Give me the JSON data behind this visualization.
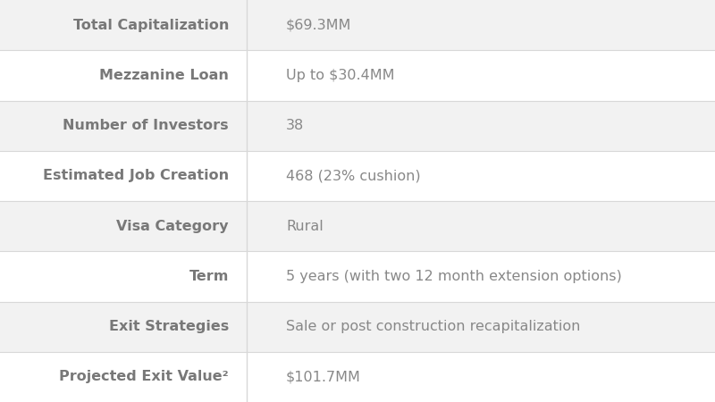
{
  "rows": [
    {
      "label": "Total Capitalization",
      "value": "$69.3MM"
    },
    {
      "label": "Mezzanine Loan",
      "value": "Up to $30.4MM"
    },
    {
      "label": "Number of Investors",
      "value": "38"
    },
    {
      "label": "Estimated Job Creation",
      "value": "468 (23% cushion)"
    },
    {
      "label": "Visa Category",
      "value": "Rural"
    },
    {
      "label": "Term",
      "value": "5 years (with two 12 month extension options)"
    },
    {
      "label": "Exit Strategies",
      "value": "Sale or post construction recapitalization"
    },
    {
      "label": "Projected Exit Value²",
      "value": "$101.7MM"
    }
  ],
  "bg_color_odd": "#f2f2f2",
  "bg_color_even": "#ffffff",
  "label_color": "#787878",
  "value_color": "#888888",
  "divider_color": "#d8d8d8",
  "label_font_size": 11.5,
  "value_font_size": 11.5,
  "col_split": 0.345,
  "fig_bg": "#f8f8f8"
}
